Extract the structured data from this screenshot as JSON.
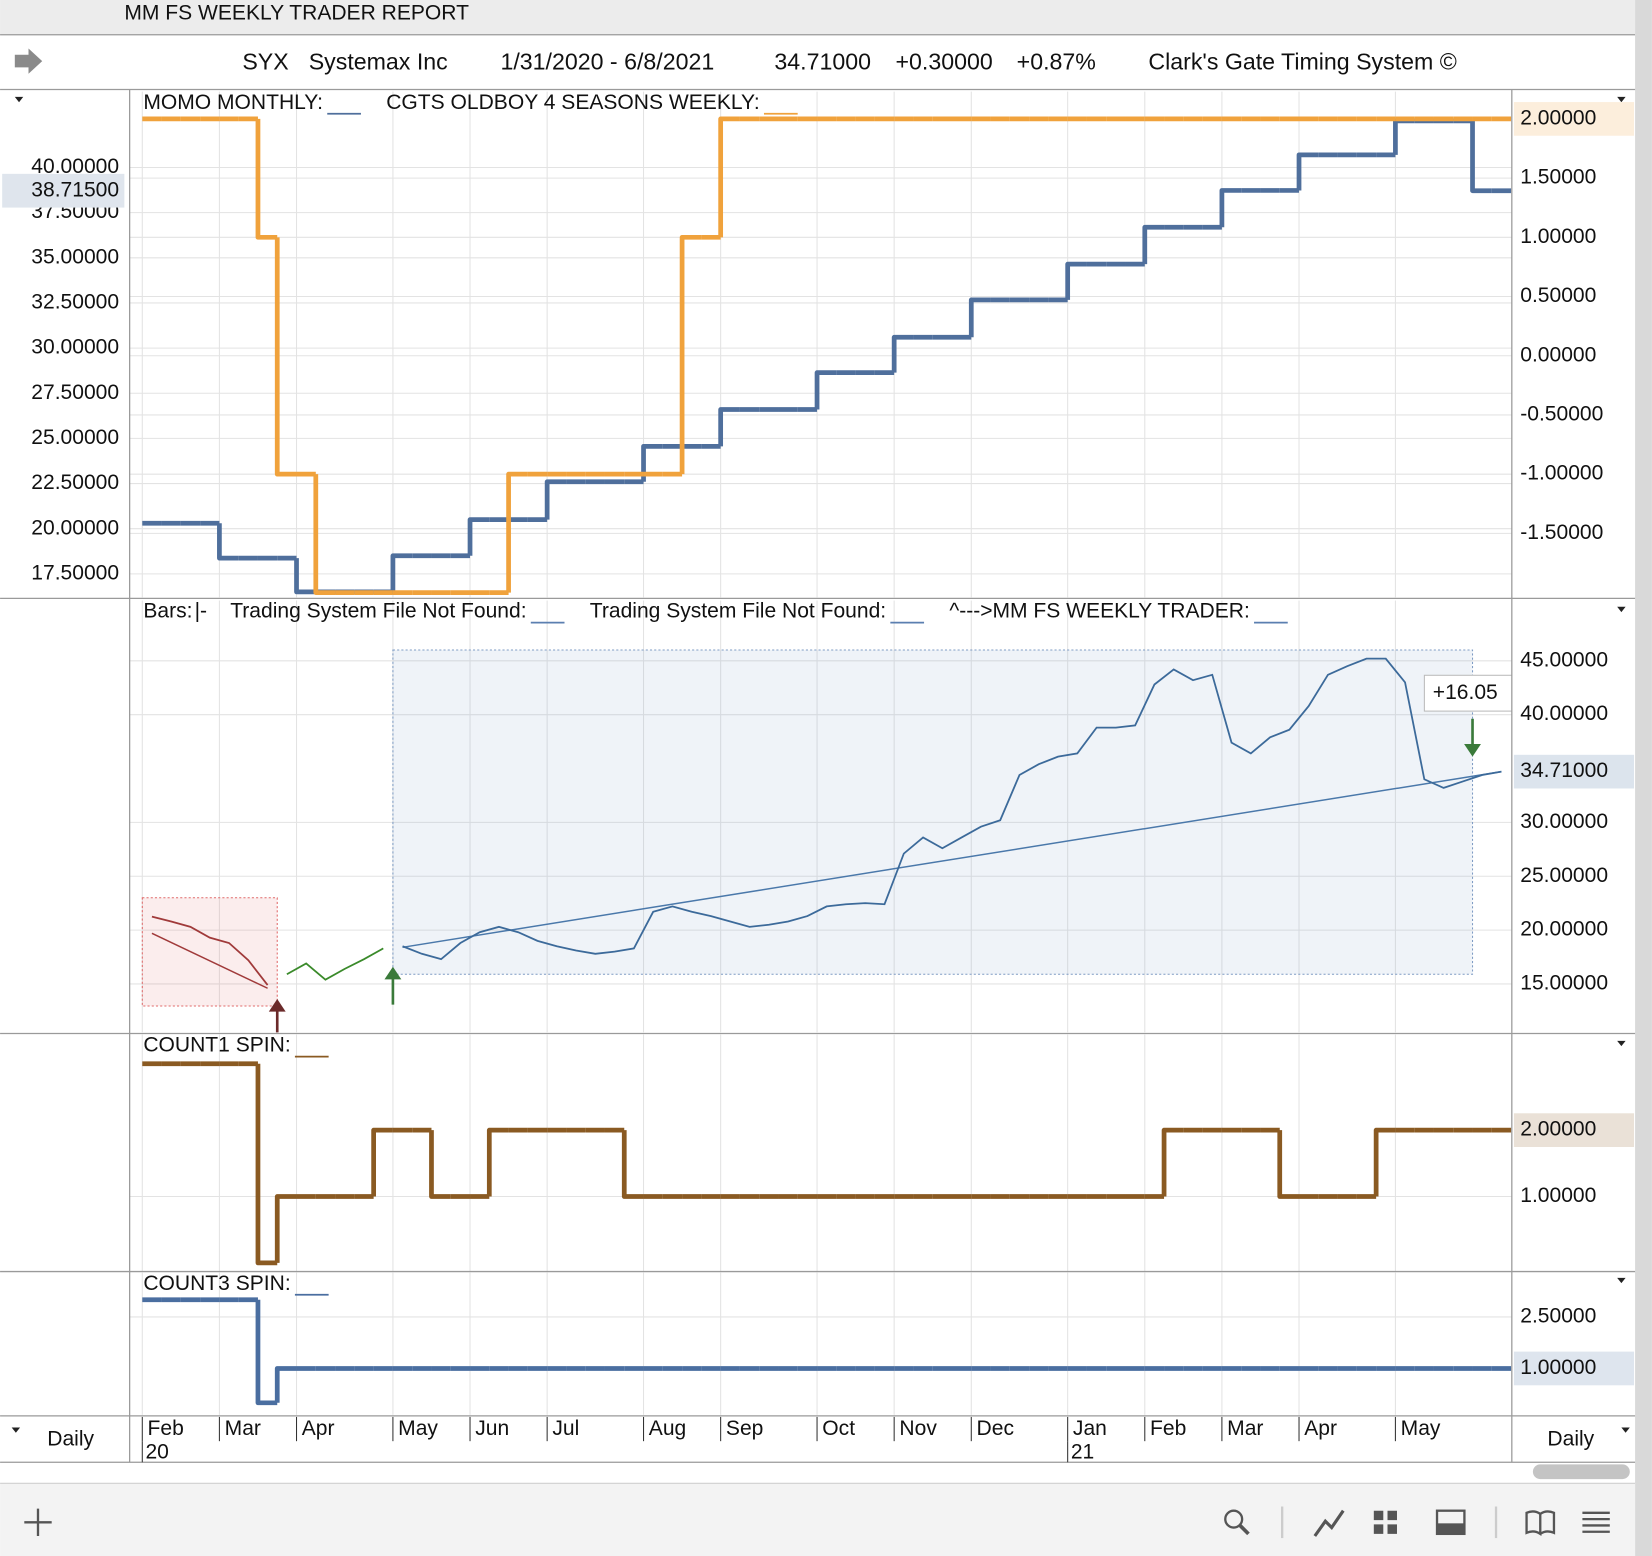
{
  "window_title": "MM FS WEEKLY TRADER REPORT",
  "header": {
    "symbol": "SYX",
    "name": "Systemax Inc",
    "range": "1/31/2020 - 6/8/2021",
    "price": "34.71000",
    "change": "+0.30000",
    "change_pct": "+0.87%",
    "system": "Clark's Gate Timing System ©"
  },
  "footer": {
    "left": "Daily",
    "right": "Daily"
  },
  "chart_data": [
    {
      "type": "line",
      "step": true,
      "y_axis_side": "left",
      "ylim": [
        16.2,
        44.2
      ],
      "yticks": [
        {
          "value": 17.5,
          "label": "17.50000"
        },
        {
          "value": 20,
          "label": "20.00000"
        },
        {
          "value": 22.5,
          "label": "22.50000"
        },
        {
          "value": 25,
          "label": "25.00000"
        },
        {
          "value": 27.5,
          "label": "27.50000"
        },
        {
          "value": 30,
          "label": "30.00000"
        },
        {
          "value": 32.5,
          "label": "32.50000"
        },
        {
          "value": 35,
          "label": "35.00000"
        },
        {
          "value": 37.5,
          "label": "37.50000"
        },
        {
          "value": 40,
          "label": "40.00000"
        }
      ],
      "y2lim": [
        -2.04,
        2.23
      ],
      "y2ticks": [
        {
          "value": -1.5,
          "label": "-1.50000"
        },
        {
          "value": -1,
          "label": "-1.00000"
        },
        {
          "value": -0.5,
          "label": "-0.50000"
        },
        {
          "value": 0,
          "label": "0.00000"
        },
        {
          "value": 0.5,
          "label": "0.50000"
        },
        {
          "value": 1,
          "label": "1.00000"
        },
        {
          "value": 1.5,
          "label": "1.50000"
        }
      ],
      "series": [
        {
          "name": "MOMO MONTHLY:",
          "color": "#4f6f9c",
          "last_label": "38.71500",
          "values": [
            20.3,
            20.3,
            20.3,
            20.3,
            18.37,
            18.37,
            18.37,
            18.37,
            16.5,
            16.5,
            16.5,
            16.5,
            16.5,
            18.5,
            18.5,
            18.5,
            18.5,
            20.5,
            20.5,
            20.5,
            20.5,
            22.6,
            22.6,
            22.6,
            22.6,
            22.6,
            24.56,
            24.56,
            24.56,
            24.56,
            26.6,
            26.6,
            26.6,
            26.6,
            26.6,
            28.64,
            28.64,
            28.64,
            28.64,
            30.6,
            30.6,
            30.6,
            30.6,
            32.67,
            32.67,
            32.67,
            32.67,
            32.67,
            34.65,
            34.65,
            34.65,
            34.65,
            36.69,
            36.69,
            36.69,
            36.69,
            38.73,
            38.73,
            38.73,
            38.73,
            40.7,
            40.7,
            40.7,
            40.7,
            40.7,
            42.58,
            42.58,
            42.58,
            42.58,
            38.715,
            38.715
          ]
        },
        {
          "name": "CGTS OLDBOY 4 SEASONS WEEKLY:",
          "color": "#f0a23c",
          "axis": "y2",
          "last_label": "2.00000",
          "values": [
            2,
            2,
            2,
            2,
            2,
            2,
            1,
            -1,
            -1,
            -2,
            -2,
            -2,
            -2,
            -2,
            -2,
            -2,
            -2,
            -2,
            -2,
            -1,
            -1,
            -1,
            -1,
            -1,
            -1,
            -1,
            -1,
            -1,
            1,
            1,
            2,
            2,
            2,
            2,
            2,
            2,
            2,
            2,
            2,
            2,
            2,
            2,
            2,
            2,
            2,
            2,
            2,
            2,
            2,
            2,
            2,
            2,
            2,
            2,
            2,
            2,
            2,
            2,
            2,
            2,
            2,
            2,
            2,
            2,
            2,
            2,
            2,
            2,
            2,
            2,
            2
          ]
        }
      ]
    },
    {
      "type": "line",
      "y_axis_side": "right",
      "ylim": [
        10.5,
        50.6
      ],
      "yticks": [
        {
          "value": 15,
          "label": "15.00000"
        },
        {
          "value": 20,
          "label": "20.00000"
        },
        {
          "value": 25,
          "label": "25.00000"
        },
        {
          "value": 30,
          "label": "30.00000"
        },
        {
          "value": 40,
          "label": "40.00000"
        },
        {
          "value": 45,
          "label": "45.00000"
        }
      ],
      "legend": [
        {
          "text": "Bars:",
          "glyph": "|-",
          "color": "#3a8a2a"
        },
        {
          "text": "Trading System File Not Found:",
          "color": "#5b7fb0"
        },
        {
          "text": "Trading System File Not Found:",
          "color": "#5b7fb0"
        },
        {
          "text": "^--->MM FS WEEKLY TRADER:",
          "color": "#5b7fb0"
        }
      ],
      "series": [
        {
          "color": "#a03a3a",
          "values": [
            21.25,
            20.8,
            20.3,
            19.3,
            18.8,
            17.2,
            14.9,
            null,
            null,
            null,
            null,
            null,
            null,
            null,
            null,
            null,
            null,
            null,
            null,
            null,
            null,
            null,
            null,
            null,
            null,
            null,
            null,
            null,
            null,
            null,
            null,
            null,
            null,
            null,
            null,
            null,
            null,
            null,
            null,
            null,
            null,
            null,
            null,
            null,
            null,
            null,
            null,
            null,
            null,
            null,
            null,
            null,
            null,
            null,
            null,
            null,
            null,
            null,
            null,
            null,
            null,
            null,
            null,
            null,
            null,
            null,
            null,
            null,
            null,
            null,
            null
          ]
        },
        {
          "color": "#3a8a2a",
          "values": [
            null,
            null,
            null,
            null,
            null,
            null,
            null,
            15.9,
            16.9,
            15.4,
            16.4,
            17.3,
            18.3,
            null,
            null,
            null,
            null,
            null,
            null,
            null,
            null,
            null,
            null,
            null,
            null,
            null,
            null,
            null,
            null,
            null,
            null,
            null,
            null,
            null,
            null,
            null,
            null,
            null,
            null,
            null,
            null,
            null,
            null,
            null,
            null,
            null,
            null,
            null,
            null,
            null,
            null,
            null,
            null,
            null,
            null,
            null,
            null,
            null,
            null,
            null,
            null,
            null,
            null,
            null,
            null,
            null,
            null,
            null,
            null,
            null,
            null
          ]
        },
        {
          "color": "#3c6a9a",
          "last_label": "34.71000",
          "values": [
            null,
            null,
            null,
            null,
            null,
            null,
            null,
            null,
            null,
            null,
            null,
            null,
            null,
            18.5,
            17.8,
            17.3,
            18.8,
            19.8,
            20.3,
            19.8,
            19.0,
            18.5,
            18.1,
            17.8,
            18.0,
            18.3,
            21.7,
            22.2,
            21.7,
            21.3,
            20.8,
            20.3,
            20.5,
            20.8,
            21.3,
            22.2,
            22.4,
            22.5,
            22.4,
            27.1,
            28.6,
            27.6,
            28.6,
            29.6,
            30.2,
            34.4,
            35.4,
            36.1,
            36.4,
            38.8,
            38.8,
            39.0,
            42.8,
            44.2,
            43.2,
            43.7,
            37.4,
            36.4,
            37.9,
            38.6,
            40.8,
            43.7,
            44.5,
            45.2,
            45.2,
            43.0,
            34.0,
            33.2,
            33.8,
            34.4,
            34.71
          ]
        }
      ],
      "boxes": [
        {
          "from": 0,
          "to": 6,
          "low": 12.95,
          "high": 23.0,
          "color": "#e06a6a"
        },
        {
          "from": 13,
          "to": 68,
          "low": 15.9,
          "high": 46.0,
          "color": "#7f9cc4"
        }
      ],
      "trendlines": [
        {
          "from": [
            0,
            19.7
          ],
          "to": [
            6,
            14.6
          ],
          "color": "#a03a3a"
        },
        {
          "from": [
            13,
            18.4
          ],
          "to": [
            70,
            34.71
          ],
          "color": "#4a78aa"
        }
      ],
      "signals": [
        {
          "at": 7,
          "value": 13.6,
          "dir": "up",
          "color": "#6b2a2a"
        },
        {
          "at": 13,
          "value": 16.6,
          "dir": "up",
          "color": "#3a7a3a"
        },
        {
          "at": 69,
          "value": 36.1,
          "dir": "down",
          "color": "#3a7a3a"
        }
      ],
      "annotation": "+16.05"
    },
    {
      "type": "line",
      "step": true,
      "y_axis_side": "right",
      "ylim": [
        -0.13,
        3.44
      ],
      "yticks": [
        {
          "value": 1,
          "label": "1.00000"
        }
      ],
      "series": [
        {
          "name": "COUNT1 SPIN:",
          "color": "#8a5a22",
          "last_label": "2.00000",
          "values": [
            3,
            3,
            3,
            3,
            3,
            3,
            0,
            1,
            1,
            1,
            1,
            1,
            2,
            2,
            2,
            1,
            1,
            1,
            2,
            2,
            2,
            2,
            2,
            2,
            2,
            1,
            1,
            1,
            1,
            1,
            1,
            1,
            1,
            1,
            1,
            1,
            1,
            1,
            1,
            1,
            1,
            1,
            1,
            1,
            1,
            1,
            1,
            1,
            1,
            1,
            1,
            1,
            1,
            2,
            2,
            2,
            2,
            2,
            2,
            1,
            1,
            1,
            1,
            1,
            2,
            2,
            2,
            2,
            2,
            2,
            2
          ]
        }
      ]
    },
    {
      "type": "line",
      "step": true,
      "y_axis_side": "right",
      "ylim": [
        -0.35,
        3.79
      ],
      "yticks": [
        {
          "value": 2.5,
          "label": "2.50000"
        }
      ],
      "series": [
        {
          "name": "COUNT3 SPIN:",
          "color": "#4a6ea0",
          "last_label": "1.00000",
          "values": [
            3,
            3,
            3,
            3,
            3,
            3,
            0,
            1,
            1,
            1,
            1,
            1,
            1,
            1,
            1,
            1,
            1,
            1,
            1,
            1,
            1,
            1,
            1,
            1,
            1,
            1,
            1,
            1,
            1,
            1,
            1,
            1,
            1,
            1,
            1,
            1,
            1,
            1,
            1,
            1,
            1,
            1,
            1,
            1,
            1,
            1,
            1,
            1,
            1,
            1,
            1,
            1,
            1,
            1,
            1,
            1,
            1,
            1,
            1,
            1,
            1,
            1,
            1,
            1,
            1,
            1,
            1,
            1,
            1,
            1,
            1
          ]
        }
      ],
      "categories": [
        "Feb",
        null,
        null,
        null,
        "Mar",
        null,
        null,
        null,
        "Apr",
        null,
        null,
        null,
        null,
        "May",
        null,
        null,
        null,
        "Jun",
        null,
        null,
        null,
        "Jul",
        null,
        null,
        null,
        null,
        "Aug",
        null,
        null,
        null,
        "Sep",
        null,
        null,
        null,
        null,
        "Oct",
        null,
        null,
        null,
        "Nov",
        null,
        null,
        null,
        "Dec",
        null,
        null,
        null,
        null,
        "Jan",
        null,
        null,
        null,
        "Feb",
        null,
        null,
        null,
        "Mar",
        null,
        null,
        null,
        "Apr",
        null,
        null,
        null,
        null,
        "May",
        null,
        null,
        null,
        null,
        null
      ],
      "years": [
        {
          "at": 0,
          "label": "20"
        },
        {
          "at": 48,
          "label": "21"
        }
      ]
    }
  ]
}
